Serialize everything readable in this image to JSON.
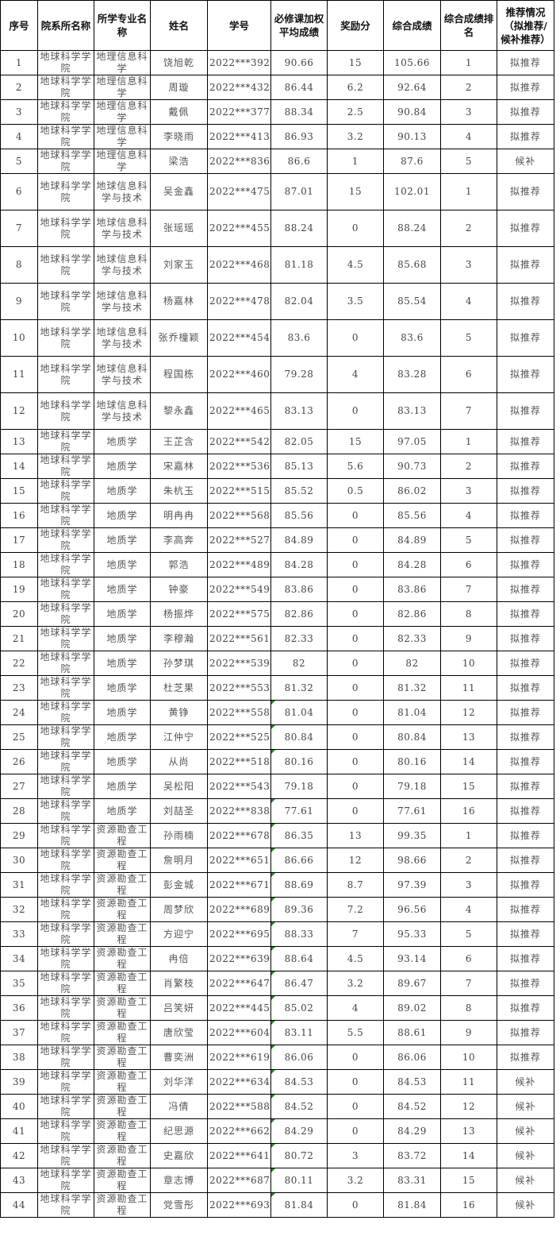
{
  "headers": [
    "序号",
    "院系所名称",
    "所学专业名称",
    "姓名",
    "学号",
    "必修课加权平均成绩",
    "奖励分",
    "综合成绩",
    "综合成绩排名",
    "推荐情况（拟推荐/候补推荐）"
  ],
  "rows": [
    [
      "1",
      "地球科学学院",
      "地理信息科学",
      "饶旭乾",
      "2022***392",
      "90.66",
      "15",
      "105.66",
      "1",
      "拟推荐"
    ],
    [
      "2",
      "地球科学学院",
      "地理信息科学",
      "周璇",
      "2022***432",
      "86.44",
      "6.2",
      "92.64",
      "2",
      "拟推荐"
    ],
    [
      "3",
      "地球科学学院",
      "地理信息科学",
      "戴佩",
      "2022***377",
      "88.34",
      "2.5",
      "90.84",
      "3",
      "拟推荐"
    ],
    [
      "4",
      "地球科学学院",
      "地理信息科学",
      "李晓雨",
      "2022***413",
      "86.93",
      "3.2",
      "90.13",
      "4",
      "拟推荐"
    ],
    [
      "5",
      "地球科学学院",
      "地理信息科学",
      "梁浩",
      "2022***836",
      "86.6",
      "1",
      "87.6",
      "5",
      "候补"
    ],
    [
      "6",
      "地球科学学院",
      "地球信息科学与技术",
      "吴金鑫",
      "2022***475",
      "87.01",
      "15",
      "102.01",
      "1",
      "拟推荐"
    ],
    [
      "7",
      "地球科学学院",
      "地球信息科学与技术",
      "张瑶瑶",
      "2022***455",
      "88.24",
      "0",
      "88.24",
      "2",
      "拟推荐"
    ],
    [
      "8",
      "地球科学学院",
      "地球信息科学与技术",
      "刘家玉",
      "2022***468",
      "81.18",
      "4.5",
      "85.68",
      "3",
      "拟推荐"
    ],
    [
      "9",
      "地球科学学院",
      "地球信息科学与技术",
      "杨嘉林",
      "2022***478",
      "82.04",
      "3.5",
      "85.54",
      "4",
      "拟推荐"
    ],
    [
      "10",
      "地球科学学院",
      "地球信息科学与技术",
      "张乔橦颖",
      "2022***454",
      "83.6",
      "0",
      "83.6",
      "5",
      "拟推荐"
    ],
    [
      "11",
      "地球科学学院",
      "地球信息科学与技术",
      "程国栋",
      "2022***460",
      "79.28",
      "4",
      "83.28",
      "6",
      "拟推荐"
    ],
    [
      "12",
      "地球科学学院",
      "地球信息科学与技术",
      "黎永鑫",
      "2022***465",
      "83.13",
      "0",
      "83.13",
      "7",
      "拟推荐"
    ],
    [
      "13",
      "地球科学学院",
      "地质学",
      "王芷含",
      "2022***542",
      "82.05",
      "15",
      "97.05",
      "1",
      "拟推荐"
    ],
    [
      "14",
      "地球科学学院",
      "地质学",
      "宋嘉林",
      "2022***536",
      "85.13",
      "5.6",
      "90.73",
      "2",
      "拟推荐"
    ],
    [
      "15",
      "地球科学学院",
      "地质学",
      "朱杭玉",
      "2022***515",
      "85.52",
      "0.5",
      "86.02",
      "3",
      "拟推荐"
    ],
    [
      "16",
      "地球科学学院",
      "地质学",
      "明冉冉",
      "2022***568",
      "85.56",
      "0",
      "85.56",
      "4",
      "拟推荐"
    ],
    [
      "17",
      "地球科学学院",
      "地质学",
      "李高奔",
      "2022***527",
      "84.89",
      "0",
      "84.89",
      "5",
      "拟推荐"
    ],
    [
      "18",
      "地球科学学院",
      "地质学",
      "郭浩",
      "2022***489",
      "84.28",
      "0",
      "84.28",
      "6",
      "拟推荐"
    ],
    [
      "19",
      "地球科学学院",
      "地质学",
      "钟豪",
      "2022***549",
      "83.86",
      "0",
      "83.86",
      "7",
      "拟推荐"
    ],
    [
      "20",
      "地球科学学院",
      "地质学",
      "杨振烨",
      "2022***575",
      "82.86",
      "0",
      "82.86",
      "8",
      "拟推荐"
    ],
    [
      "21",
      "地球科学学院",
      "地质学",
      "李穆瀚",
      "2022***561",
      "82.33",
      "0",
      "82.33",
      "9",
      "拟推荐"
    ],
    [
      "22",
      "地球科学学院",
      "地质学",
      "孙梦琪",
      "2022***539",
      "82",
      "0",
      "82",
      "10",
      "拟推荐"
    ],
    [
      "23",
      "地球科学学院",
      "地质学",
      "杜芝果",
      "2022***553",
      "81.32",
      "0",
      "81.32",
      "11",
      "拟推荐"
    ],
    [
      "24",
      "地球科学学院",
      "地质学",
      "黄铮",
      "2022***558",
      "81.04",
      "0",
      "81.04",
      "12",
      "拟推荐"
    ],
    [
      "25",
      "地球科学学院",
      "地质学",
      "江仲宁",
      "2022***525",
      "80.84",
      "0",
      "80.84",
      "13",
      "拟推荐"
    ],
    [
      "26",
      "地球科学学院",
      "地质学",
      "从尚",
      "2022***518",
      "80.16",
      "0",
      "80.16",
      "14",
      "拟推荐"
    ],
    [
      "27",
      "地球科学学院",
      "地质学",
      "吴松阳",
      "2022***543",
      "79.18",
      "0",
      "79.18",
      "15",
      "拟推荐"
    ],
    [
      "28",
      "地球科学学院",
      "地质学",
      "刘喆圣",
      "2022***838",
      "77.61",
      "0",
      "77.61",
      "16",
      "拟推荐"
    ],
    [
      "29",
      "地球科学学院",
      "资源勘查工程",
      "孙雨楠",
      "2022***678",
      "86.35",
      "13",
      "99.35",
      "1",
      "拟推荐"
    ],
    [
      "30",
      "地球科学学院",
      "资源勘查工程",
      "詹明月",
      "2022***651",
      "86.66",
      "12",
      "98.66",
      "2",
      "拟推荐"
    ],
    [
      "31",
      "地球科学学院",
      "资源勘查工程",
      "彭金城",
      "2022***671",
      "88.69",
      "8.7",
      "97.39",
      "3",
      "拟推荐"
    ],
    [
      "32",
      "地球科学学院",
      "资源勘查工程",
      "周梦欣",
      "2022***689",
      "89.36",
      "7.2",
      "96.56",
      "4",
      "拟推荐"
    ],
    [
      "33",
      "地球科学学院",
      "资源勘查工程",
      "方迎宁",
      "2022***695",
      "88.33",
      "7",
      "95.33",
      "5",
      "拟推荐"
    ],
    [
      "34",
      "地球科学学院",
      "资源勘查工程",
      "冉倍",
      "2022***639",
      "88.64",
      "4.5",
      "93.14",
      "6",
      "拟推荐"
    ],
    [
      "35",
      "地球科学学院",
      "资源勘查工程",
      "肖繁枝",
      "2022***647",
      "86.47",
      "3.2",
      "89.67",
      "7",
      "拟推荐"
    ],
    [
      "36",
      "地球科学学院",
      "资源勘查工程",
      "吕笑妍",
      "2022***445",
      "85.02",
      "4",
      "89.02",
      "8",
      "拟推荐"
    ],
    [
      "37",
      "地球科学学院",
      "资源勘查工程",
      "唐欣莹",
      "2022***604",
      "83.11",
      "5.5",
      "88.61",
      "9",
      "拟推荐"
    ],
    [
      "38",
      "地球科学学院",
      "资源勘查工程",
      "曹奕洲",
      "2022***619",
      "86.06",
      "0",
      "86.06",
      "10",
      "拟推荐"
    ],
    [
      "39",
      "地球科学学院",
      "资源勘查工程",
      "刘华洋",
      "2022***634",
      "84.53",
      "0",
      "84.53",
      "11",
      "候补"
    ],
    [
      "40",
      "地球科学学院",
      "资源勘查工程",
      "冯倩",
      "2022***588",
      "84.52",
      "0",
      "84.52",
      "12",
      "候补"
    ],
    [
      "41",
      "地球科学学院",
      "资源勘查工程",
      "纪思源",
      "2022***662",
      "84.29",
      "0",
      "84.29",
      "13",
      "候补"
    ],
    [
      "42",
      "地球科学学院",
      "资源勘查工程",
      "史嘉欣",
      "2022***641",
      "80.72",
      "3",
      "83.72",
      "14",
      "候补"
    ],
    [
      "43",
      "地球科学学院",
      "资源勘查工程",
      "章志博",
      "2022***687",
      "80.11",
      "3.2",
      "83.31",
      "15",
      "候补"
    ],
    [
      "44",
      "地球科学学院",
      "资源勘查工程",
      "党雪彤",
      "2022***693",
      "81.84",
      "0",
      "81.84",
      "16",
      "候补"
    ]
  ],
  "flagged_rows": [
    "24",
    "25",
    "26",
    "28",
    "29",
    "30",
    "31",
    "32",
    "33",
    "34",
    "35",
    "36",
    "37",
    "38",
    "39",
    "40",
    "41",
    "42",
    "43",
    "44"
  ],
  "flag_color": "#1a8a1a"
}
